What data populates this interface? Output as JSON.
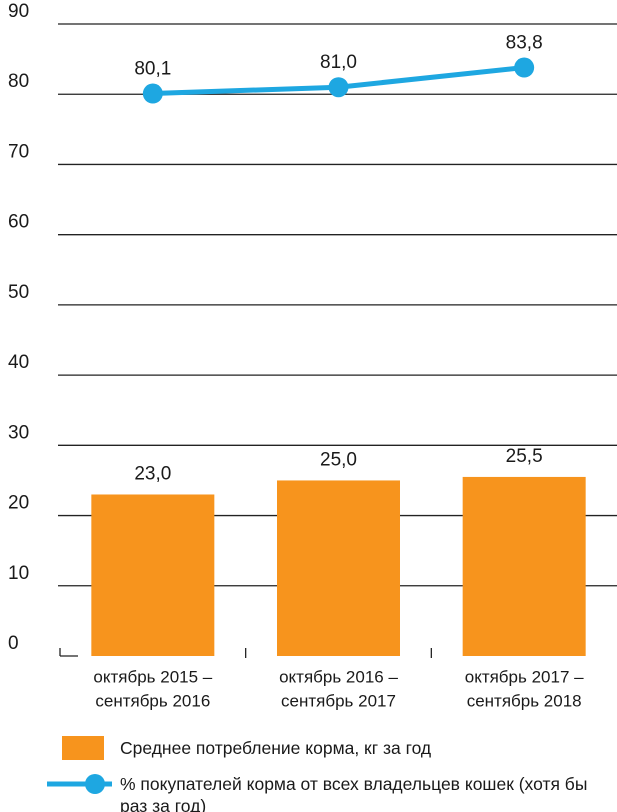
{
  "chart_data": {
    "type": "bar_line",
    "categories": [
      [
        "октябрь 2015 –",
        "сентябрь 2016"
      ],
      [
        "октябрь 2016 –",
        "сентябрь 2017"
      ],
      [
        "октябрь 2017 –",
        "сентябрь 2018"
      ]
    ],
    "series": [
      {
        "name": "Среднее потребление корма, кг за год",
        "type": "bar",
        "color": "#f7941d",
        "values": [
          23.0,
          25.0,
          25.5
        ],
        "value_labels": [
          "23,0",
          "25,0",
          "25,5"
        ]
      },
      {
        "name": "% покупателей корма от всех владельцев кошек (хотя бы раз за год)",
        "type": "line",
        "color": "#1ea7e1",
        "values": [
          80.1,
          81.0,
          83.8
        ],
        "value_labels": [
          "80,1",
          "81,0",
          "83,8"
        ]
      }
    ],
    "ylim": [
      0,
      90
    ],
    "yticks": [
      0,
      10,
      20,
      30,
      40,
      50,
      60,
      70,
      80,
      90
    ],
    "grid": true
  }
}
